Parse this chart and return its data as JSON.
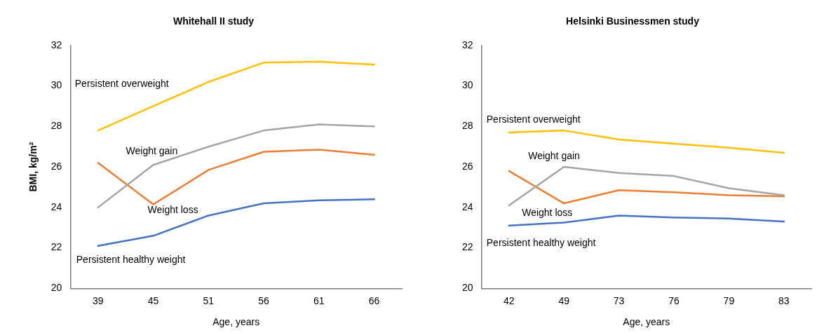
{
  "chart_data": [
    {
      "type": "line",
      "title": "Whitehall II study",
      "xlabel": "Age, years",
      "ylabel": "BMI, kg/m²",
      "categories": [
        "39",
        "45",
        "51",
        "56",
        "61",
        "66"
      ],
      "ylim": [
        20,
        32
      ],
      "yticks": [
        20,
        22,
        24,
        26,
        28,
        30,
        32
      ],
      "grid": false,
      "legend": false,
      "marker": "none",
      "series": [
        {
          "name": "Persistent overweight",
          "color": "#ffc000",
          "values": [
            27.8,
            29.0,
            30.2,
            31.15,
            31.2,
            31.05
          ]
        },
        {
          "name": "Weight gain",
          "color": "#a5a5a5",
          "values": [
            24.0,
            26.1,
            27.0,
            27.8,
            28.1,
            28.0
          ]
        },
        {
          "name": "Weight loss",
          "color": "#ed7d31",
          "values": [
            26.2,
            24.15,
            25.85,
            26.75,
            26.85,
            26.6
          ]
        },
        {
          "name": "Persistent healthy weight",
          "color": "#4472c4",
          "values": [
            22.1,
            22.6,
            23.6,
            24.2,
            24.35,
            24.4
          ]
        }
      ]
    },
    {
      "type": "line",
      "title": "Helsinki Businessmen study",
      "xlabel": "Age, years",
      "categories": [
        "42",
        "49",
        "73",
        "76",
        "79",
        "83"
      ],
      "ylim": [
        20,
        32
      ],
      "yticks": [
        20,
        22,
        24,
        26,
        28,
        30,
        32
      ],
      "grid": false,
      "legend": false,
      "marker": "none",
      "series": [
        {
          "name": "Persistent overweight",
          "color": "#ffc000",
          "values": [
            27.7,
            27.8,
            27.35,
            27.15,
            26.95,
            26.7
          ]
        },
        {
          "name": "Weight gain",
          "color": "#a5a5a5",
          "values": [
            24.1,
            26.0,
            25.7,
            25.55,
            24.95,
            24.6
          ]
        },
        {
          "name": "Weight loss",
          "color": "#ed7d31",
          "values": [
            25.8,
            24.2,
            24.85,
            24.75,
            24.6,
            24.55
          ]
        },
        {
          "name": "Persistent healthy weight",
          "color": "#4472c4",
          "values": [
            23.1,
            23.25,
            23.6,
            23.5,
            23.45,
            23.3
          ]
        }
      ]
    }
  ]
}
